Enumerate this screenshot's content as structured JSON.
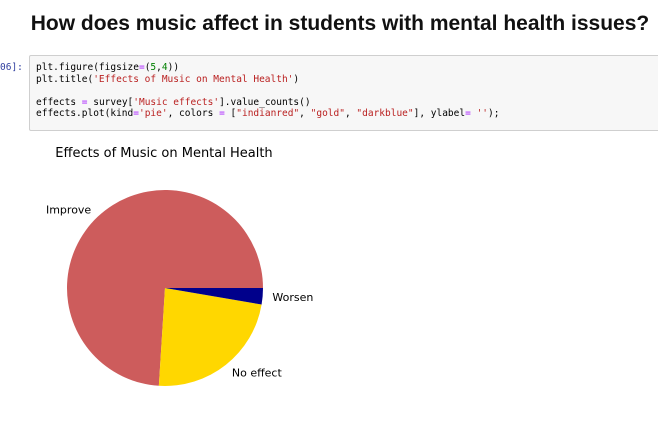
{
  "heading": "How does music affect in students with mental health issues?",
  "cell": {
    "prompt": "06]:",
    "lines": [
      [
        {
          "t": "plt.figure(figsize"
        },
        {
          "t": "=",
          "c": "op"
        },
        {
          "t": "("
        },
        {
          "t": "5",
          "c": "num"
        },
        {
          "t": ","
        },
        {
          "t": "4",
          "c": "num"
        },
        {
          "t": "))"
        }
      ],
      [
        {
          "t": "plt.title("
        },
        {
          "t": "'Effects of Music on Mental Health'",
          "c": "str"
        },
        {
          "t": ")"
        }
      ],
      [
        {
          "t": ""
        }
      ],
      [
        {
          "t": "effects "
        },
        {
          "t": "=",
          "c": "op"
        },
        {
          "t": " survey["
        },
        {
          "t": "'Music effects'",
          "c": "str"
        },
        {
          "t": "].value_counts()"
        }
      ],
      [
        {
          "t": "effects.plot(kind"
        },
        {
          "t": "=",
          "c": "op"
        },
        {
          "t": ""
        },
        {
          "t": "'pie'",
          "c": "str"
        },
        {
          "t": ", colors "
        },
        {
          "t": "=",
          "c": "op"
        },
        {
          "t": " ["
        },
        {
          "t": "\"indianred\"",
          "c": "str"
        },
        {
          "t": ", "
        },
        {
          "t": "\"gold\"",
          "c": "str"
        },
        {
          "t": ", "
        },
        {
          "t": "\"darkblue\"",
          "c": "str"
        },
        {
          "t": "], ylabel"
        },
        {
          "t": "=",
          "c": "op"
        },
        {
          "t": " "
        },
        {
          "t": "''",
          "c": "str"
        },
        {
          "t": ");"
        }
      ]
    ]
  },
  "chart_data": {
    "type": "pie",
    "title": "Effects of Music on Mental Health",
    "categories": [
      "Improve",
      "No effect",
      "Worsen"
    ],
    "values": [
      74.0,
      23.3,
      2.7
    ],
    "colors": [
      "#cd5c5c",
      "#ffd700",
      "#00008b"
    ],
    "ylabel": "",
    "start_angle_deg": 0,
    "direction": "counterclockwise"
  }
}
